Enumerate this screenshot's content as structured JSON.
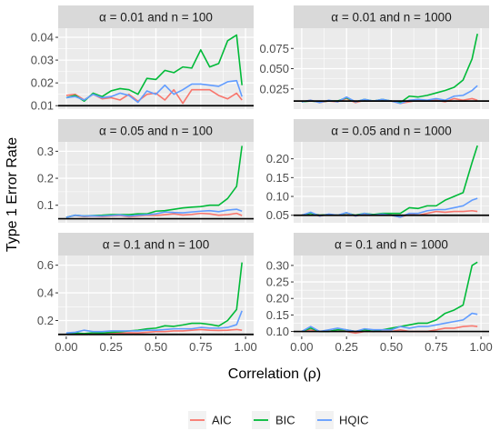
{
  "chart_data": {
    "type": "line",
    "layout": "faceted-3x2",
    "ylabel": "Type 1 Error Rate",
    "xlabel": "Correlation (ρ)",
    "x_ticks": [
      "0.00",
      "0.25",
      "0.50",
      "0.75",
      "1.00"
    ],
    "x": [
      0.0,
      0.05,
      0.1,
      0.15,
      0.2,
      0.25,
      0.3,
      0.35,
      0.4,
      0.45,
      0.5,
      0.55,
      0.6,
      0.65,
      0.7,
      0.75,
      0.8,
      0.85,
      0.9,
      0.95,
      0.98
    ],
    "legend": {
      "placement": "bottom",
      "entries": [
        {
          "name": "AIC",
          "color": "#F8766D"
        },
        {
          "name": "BIC",
          "color": "#00BA38"
        },
        {
          "name": "HQIC",
          "color": "#619CFF"
        }
      ]
    },
    "grid": true,
    "panels": [
      {
        "title": "α = 0.01 and n = 100",
        "alpha_line": 0.01,
        "ylim": [
          0.0085,
          0.044
        ],
        "y_ticks": [
          0.01,
          0.02,
          0.03,
          0.04
        ],
        "y_tick_labels": [
          "0.01",
          "0.02",
          "0.03",
          "0.04"
        ],
        "series": [
          {
            "name": "AIC",
            "values": [
              0.0145,
              0.015,
              0.0125,
              0.015,
              0.013,
              0.0135,
              0.0125,
              0.015,
              0.012,
              0.015,
              0.0155,
              0.0125,
              0.017,
              0.011,
              0.017,
              0.017,
              0.017,
              0.0145,
              0.013,
              0.0155,
              0.0125
            ]
          },
          {
            "name": "BIC",
            "values": [
              0.0135,
              0.0145,
              0.012,
              0.0155,
              0.014,
              0.0165,
              0.0175,
              0.017,
              0.015,
              0.022,
              0.0215,
              0.0255,
              0.0245,
              0.027,
              0.0265,
              0.0345,
              0.027,
              0.0285,
              0.0385,
              0.041,
              0.019
            ]
          },
          {
            "name": "HQIC",
            "values": [
              0.0135,
              0.014,
              0.0125,
              0.015,
              0.0135,
              0.014,
              0.0155,
              0.0145,
              0.0115,
              0.0165,
              0.015,
              0.019,
              0.015,
              0.017,
              0.0195,
              0.0195,
              0.019,
              0.0185,
              0.0205,
              0.021,
              0.014
            ]
          }
        ]
      },
      {
        "title": "α = 0.01 and n = 1000",
        "alpha_line": 0.01,
        "ylim": [
          0.0,
          0.1
        ],
        "y_ticks": [
          0.025,
          0.05,
          0.075
        ],
        "y_tick_labels": [
          "0.025",
          "0.050",
          "0.075"
        ],
        "series": [
          {
            "name": "AIC",
            "values": [
              0.009,
              0.011,
              0.008,
              0.01,
              0.009,
              0.013,
              0.008,
              0.011,
              0.01,
              0.011,
              0.01,
              0.007,
              0.009,
              0.011,
              0.01,
              0.011,
              0.009,
              0.013,
              0.011,
              0.013,
              0.011
            ]
          },
          {
            "name": "BIC",
            "values": [
              0.009,
              0.01,
              0.009,
              0.01,
              0.01,
              0.014,
              0.009,
              0.012,
              0.01,
              0.012,
              0.01,
              0.008,
              0.016,
              0.015,
              0.017,
              0.02,
              0.023,
              0.027,
              0.036,
              0.062,
              0.093
            ]
          },
          {
            "name": "HQIC",
            "values": [
              0.009,
              0.011,
              0.008,
              0.011,
              0.009,
              0.015,
              0.009,
              0.012,
              0.01,
              0.012,
              0.01,
              0.007,
              0.011,
              0.012,
              0.011,
              0.013,
              0.011,
              0.016,
              0.017,
              0.023,
              0.029
            ]
          }
        ]
      },
      {
        "title": "α = 0.05 and n = 100",
        "alpha_line": 0.05,
        "ylim": [
          0.035,
          0.335
        ],
        "y_ticks": [
          0.1,
          0.2,
          0.3
        ],
        "y_tick_labels": [
          "0.1",
          "0.2",
          "0.3"
        ],
        "series": [
          {
            "name": "AIC",
            "values": [
              0.055,
              0.062,
              0.058,
              0.06,
              0.058,
              0.06,
              0.062,
              0.057,
              0.06,
              0.063,
              0.062,
              0.065,
              0.068,
              0.064,
              0.066,
              0.07,
              0.068,
              0.063,
              0.065,
              0.07,
              0.062
            ]
          },
          {
            "name": "BIC",
            "values": [
              0.055,
              0.063,
              0.06,
              0.062,
              0.063,
              0.065,
              0.065,
              0.065,
              0.068,
              0.068,
              0.078,
              0.08,
              0.085,
              0.09,
              0.093,
              0.095,
              0.1,
              0.1,
              0.125,
              0.17,
              0.32
            ]
          },
          {
            "name": "HQIC",
            "values": [
              0.055,
              0.063,
              0.06,
              0.061,
              0.06,
              0.062,
              0.064,
              0.06,
              0.063,
              0.065,
              0.068,
              0.075,
              0.073,
              0.072,
              0.075,
              0.078,
              0.08,
              0.076,
              0.082,
              0.085,
              0.078
            ]
          }
        ]
      },
      {
        "title": "α = 0.05 and n = 1000",
        "alpha_line": 0.05,
        "ylim": [
          0.03,
          0.245
        ],
        "y_ticks": [
          0.05,
          0.1,
          0.15,
          0.2
        ],
        "y_tick_labels": [
          "0.05",
          "0.10",
          "0.15",
          "0.20"
        ],
        "series": [
          {
            "name": "AIC",
            "values": [
              0.05,
              0.055,
              0.048,
              0.052,
              0.05,
              0.055,
              0.048,
              0.053,
              0.05,
              0.052,
              0.05,
              0.045,
              0.052,
              0.05,
              0.055,
              0.06,
              0.058,
              0.06,
              0.06,
              0.062,
              0.06
            ]
          },
          {
            "name": "BIC",
            "values": [
              0.05,
              0.055,
              0.05,
              0.052,
              0.05,
              0.056,
              0.05,
              0.055,
              0.052,
              0.055,
              0.055,
              0.055,
              0.07,
              0.068,
              0.075,
              0.075,
              0.09,
              0.1,
              0.11,
              0.19,
              0.235
            ]
          },
          {
            "name": "HQIC",
            "values": [
              0.05,
              0.058,
              0.048,
              0.053,
              0.05,
              0.057,
              0.048,
              0.055,
              0.05,
              0.053,
              0.05,
              0.045,
              0.055,
              0.055,
              0.062,
              0.065,
              0.065,
              0.07,
              0.075,
              0.09,
              0.095
            ]
          }
        ]
      },
      {
        "title": "α = 0.1 and n = 100",
        "alpha_line": 0.1,
        "ylim": [
          0.085,
          0.67
        ],
        "y_ticks": [
          0.2,
          0.4,
          0.6
        ],
        "y_tick_labels": [
          "0.2",
          "0.4",
          "0.6"
        ],
        "series": [
          {
            "name": "AIC",
            "values": [
              0.1,
              0.105,
              0.1,
              0.11,
              0.105,
              0.108,
              0.11,
              0.112,
              0.11,
              0.115,
              0.12,
              0.12,
              0.125,
              0.125,
              0.13,
              0.135,
              0.13,
              0.128,
              0.13,
              0.135,
              0.13
            ]
          },
          {
            "name": "BIC",
            "values": [
              0.105,
              0.11,
              0.105,
              0.112,
              0.11,
              0.115,
              0.118,
              0.125,
              0.13,
              0.14,
              0.145,
              0.162,
              0.158,
              0.168,
              0.18,
              0.18,
              0.172,
              0.16,
              0.2,
              0.28,
              0.62
            ]
          },
          {
            "name": "HQIC",
            "values": [
              0.11,
              0.115,
              0.13,
              0.12,
              0.12,
              0.125,
              0.125,
              0.125,
              0.125,
              0.13,
              0.13,
              0.135,
              0.14,
              0.14,
              0.14,
              0.15,
              0.145,
              0.145,
              0.15,
              0.17,
              0.27
            ]
          }
        ]
      },
      {
        "title": "α = 0.1 and n = 1000",
        "alpha_line": 0.1,
        "ylim": [
          0.085,
          0.33
        ],
        "y_ticks": [
          0.1,
          0.15,
          0.2,
          0.25,
          0.3
        ],
        "y_tick_labels": [
          "0.10",
          "0.15",
          "0.20",
          "0.25",
          "0.30"
        ],
        "series": [
          {
            "name": "AIC",
            "values": [
              0.1,
              0.105,
              0.1,
              0.1,
              0.105,
              0.1,
              0.095,
              0.1,
              0.1,
              0.1,
              0.1,
              0.105,
              0.1,
              0.1,
              0.1,
              0.105,
              0.11,
              0.11,
              0.115,
              0.117,
              0.115
            ]
          },
          {
            "name": "BIC",
            "values": [
              0.1,
              0.11,
              0.1,
              0.1,
              0.105,
              0.105,
              0.1,
              0.105,
              0.1,
              0.105,
              0.11,
              0.115,
              0.12,
              0.125,
              0.125,
              0.135,
              0.155,
              0.165,
              0.18,
              0.3,
              0.31
            ]
          },
          {
            "name": "HQIC",
            "values": [
              0.1,
              0.115,
              0.1,
              0.105,
              0.11,
              0.105,
              0.1,
              0.108,
              0.105,
              0.105,
              0.105,
              0.115,
              0.11,
              0.115,
              0.115,
              0.12,
              0.125,
              0.13,
              0.135,
              0.155,
              0.152
            ]
          }
        ]
      }
    ]
  }
}
